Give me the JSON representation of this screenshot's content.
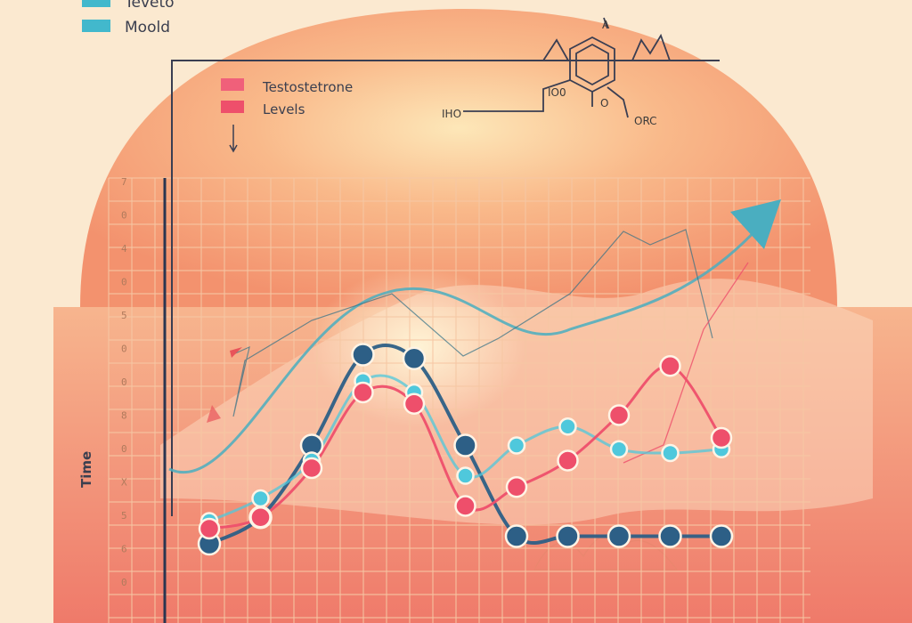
{
  "chart_data": {
    "type": "line",
    "title": "",
    "xlabel": "",
    "ylabel": "Time",
    "ylim": [
      0,
      10
    ],
    "grid": true,
    "legend_position": "top-left",
    "y_tick_labels": [
      "7",
      "0",
      "4",
      "0",
      "5",
      "0",
      "0",
      "8",
      "0",
      "X",
      "5",
      "6",
      "0"
    ],
    "legend": [
      {
        "label": "Teveto",
        "color": "#42b8cc"
      },
      {
        "label": "Moold",
        "color": "#42b8cc"
      },
      {
        "label": "Testostetrone",
        "color": "#f0607a"
      },
      {
        "label": "Levels",
        "color": "#ee4f6b"
      }
    ],
    "molecule_labels": {
      "top": "A",
      "left_h": "IHO",
      "left_o": "IO0",
      "bottom_o": "O",
      "bottom_right": "ORC"
    },
    "series": [
      {
        "name": "Testostetrone",
        "color": "#ee4f6b",
        "x": [
          1,
          2,
          3,
          4,
          5,
          6,
          7,
          8,
          9,
          10,
          11
        ],
        "y": [
          1.2,
          1.5,
          2.8,
          4.8,
          4.5,
          1.8,
          2.3,
          3.0,
          4.2,
          5.5,
          3.6
        ]
      },
      {
        "name": "Moold",
        "color": "#2d5f86",
        "x": [
          1,
          2,
          3,
          4,
          5,
          6,
          7,
          8,
          9,
          10,
          11
        ],
        "y": [
          0.8,
          1.5,
          3.4,
          5.8,
          5.7,
          3.4,
          1.0,
          1.0,
          1.0,
          1.0,
          1.0
        ]
      },
      {
        "name": "Teveto",
        "color": "#4fc8dc",
        "x": [
          1,
          2,
          3,
          4,
          5,
          6,
          7,
          8,
          9,
          10,
          11
        ],
        "y": [
          1.4,
          2.0,
          3.0,
          5.1,
          4.8,
          2.6,
          3.4,
          3.9,
          3.3,
          3.2,
          3.3
        ]
      }
    ]
  }
}
